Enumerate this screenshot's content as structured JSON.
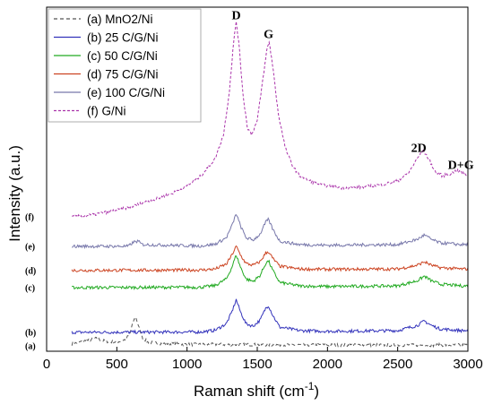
{
  "chart_data": {
    "type": "line",
    "xlabel": "Raman shift (cm",
    "xlabel_sup": "-1",
    "xlabel_close": ")",
    "ylabel": "Intensity (a.u.)",
    "xlim": [
      0,
      3000
    ],
    "x_ticks": [
      0,
      500,
      1000,
      1500,
      2000,
      2500,
      3000
    ],
    "ylim": [
      0,
      100
    ],
    "grid": false,
    "legend_position": "top-left",
    "peak_annotations": [
      {
        "label": "D",
        "x": 1350,
        "y": 96.5
      },
      {
        "label": "G",
        "x": 1580,
        "y": 91
      },
      {
        "label": "2D",
        "x": 2650,
        "y": 58
      },
      {
        "label": "D+G",
        "x": 2950,
        "y": 53
      }
    ],
    "series": [
      {
        "name": "(a) MnO2/Ni",
        "curve_label": "(a)",
        "color": "#555555",
        "dash": "4,3",
        "offset": 1.5,
        "points": [
          [
            180,
            0.6
          ],
          [
            250,
            1.3
          ],
          [
            300,
            1.7
          ],
          [
            350,
            2.2
          ],
          [
            400,
            1.6
          ],
          [
            450,
            1.2
          ],
          [
            500,
            1.2
          ],
          [
            550,
            1.7
          ],
          [
            590,
            3.2
          ],
          [
            620,
            7.5
          ],
          [
            635,
            8.4
          ],
          [
            650,
            6.5
          ],
          [
            680,
            2.6
          ],
          [
            720,
            1.2
          ],
          [
            800,
            0.8
          ],
          [
            1000,
            0.5
          ],
          [
            1500,
            0.4
          ],
          [
            2000,
            0.3
          ],
          [
            2500,
            0.3
          ],
          [
            3000,
            0.3
          ]
        ]
      },
      {
        "name": "(b) 25 C/G/Ni",
        "curve_label": "(b)",
        "color": "#3333bb",
        "dash": "",
        "offset": 5.5,
        "points": [
          [
            180,
            0
          ],
          [
            1100,
            0.1
          ],
          [
            1200,
            0.6
          ],
          [
            1280,
            2.5
          ],
          [
            1320,
            6
          ],
          [
            1350,
            9.5
          ],
          [
            1380,
            6
          ],
          [
            1420,
            2.5
          ],
          [
            1470,
            1.8
          ],
          [
            1520,
            3.5
          ],
          [
            1560,
            7
          ],
          [
            1580,
            7.8
          ],
          [
            1610,
            5
          ],
          [
            1660,
            1.5
          ],
          [
            1800,
            0.5
          ],
          [
            2000,
            0.3
          ],
          [
            2500,
            0.5
          ],
          [
            2640,
            2
          ],
          [
            2690,
            3.3
          ],
          [
            2740,
            2
          ],
          [
            2800,
            1
          ],
          [
            2950,
            0.5
          ],
          [
            3000,
            0.5
          ]
        ]
      },
      {
        "name": "(c) 50 C/G/Ni",
        "curve_label": "(c)",
        "color": "#22aa22",
        "dash": "",
        "offset": 18.5,
        "points": [
          [
            180,
            0
          ],
          [
            1100,
            0.1
          ],
          [
            1200,
            0.6
          ],
          [
            1280,
            2.5
          ],
          [
            1320,
            6
          ],
          [
            1350,
            9.5
          ],
          [
            1380,
            6
          ],
          [
            1420,
            2.5
          ],
          [
            1470,
            1.8
          ],
          [
            1520,
            3.5
          ],
          [
            1560,
            7
          ],
          [
            1580,
            7.8
          ],
          [
            1610,
            5
          ],
          [
            1660,
            1.5
          ],
          [
            1800,
            0.5
          ],
          [
            2000,
            0.3
          ],
          [
            2500,
            0.5
          ],
          [
            2640,
            2
          ],
          [
            2690,
            3.3
          ],
          [
            2740,
            2
          ],
          [
            2800,
            1
          ],
          [
            2950,
            0.5
          ],
          [
            3000,
            0.5
          ]
        ]
      },
      {
        "name": "(d) 75 C/G/Ni",
        "curve_label": "(d)",
        "color": "#cc4422",
        "dash": "",
        "offset": 23.5,
        "points": [
          [
            180,
            0
          ],
          [
            1100,
            0.1
          ],
          [
            1200,
            0.4
          ],
          [
            1280,
            1.8
          ],
          [
            1320,
            4.5
          ],
          [
            1350,
            7
          ],
          [
            1380,
            4.5
          ],
          [
            1420,
            2
          ],
          [
            1470,
            1.5
          ],
          [
            1520,
            2.5
          ],
          [
            1560,
            5
          ],
          [
            1580,
            5.5
          ],
          [
            1610,
            3.5
          ],
          [
            1660,
            1.2
          ],
          [
            1800,
            0.4
          ],
          [
            2000,
            0.3
          ],
          [
            2500,
            0.4
          ],
          [
            2640,
            1.5
          ],
          [
            2690,
            2.5
          ],
          [
            2740,
            1.5
          ],
          [
            2800,
            0.8
          ],
          [
            2950,
            0.4
          ],
          [
            3000,
            0.4
          ]
        ]
      },
      {
        "name": "(e) 100 C/G/Ni",
        "curve_label": "(e)",
        "color": "#7777aa",
        "dash": "",
        "offset": 30.5,
        "points": [
          [
            180,
            0
          ],
          [
            580,
            0
          ],
          [
            620,
            1.2
          ],
          [
            650,
            1.5
          ],
          [
            680,
            0.5
          ],
          [
            1100,
            0.1
          ],
          [
            1200,
            0.6
          ],
          [
            1280,
            2.5
          ],
          [
            1320,
            6
          ],
          [
            1350,
            9.5
          ],
          [
            1380,
            6
          ],
          [
            1420,
            2.5
          ],
          [
            1470,
            1.8
          ],
          [
            1520,
            3.5
          ],
          [
            1560,
            7
          ],
          [
            1580,
            7.8
          ],
          [
            1610,
            5
          ],
          [
            1660,
            1.5
          ],
          [
            1800,
            0.5
          ],
          [
            2000,
            0.3
          ],
          [
            2500,
            0.5
          ],
          [
            2640,
            2
          ],
          [
            2690,
            3.3
          ],
          [
            2740,
            2
          ],
          [
            2800,
            1
          ],
          [
            2950,
            0.5
          ],
          [
            3000,
            0.5
          ]
        ]
      },
      {
        "name": "(f) G/Ni",
        "curve_label": "(f)",
        "color": "#aa33aa",
        "dash": "3,2",
        "offset": 39,
        "points": [
          [
            180,
            0
          ],
          [
            300,
            0.5
          ],
          [
            400,
            1.2
          ],
          [
            500,
            2
          ],
          [
            600,
            3
          ],
          [
            700,
            4.3
          ],
          [
            800,
            5.5
          ],
          [
            900,
            7
          ],
          [
            1000,
            9
          ],
          [
            1100,
            12
          ],
          [
            1200,
            17
          ],
          [
            1260,
            24
          ],
          [
            1300,
            36
          ],
          [
            1330,
            50
          ],
          [
            1350,
            57
          ],
          [
            1370,
            50
          ],
          [
            1400,
            35
          ],
          [
            1430,
            26
          ],
          [
            1460,
            24
          ],
          [
            1500,
            28
          ],
          [
            1540,
            40
          ],
          [
            1570,
            49
          ],
          [
            1585,
            51
          ],
          [
            1610,
            44
          ],
          [
            1650,
            30
          ],
          [
            1700,
            20
          ],
          [
            1750,
            15
          ],
          [
            1800,
            12
          ],
          [
            1900,
            10
          ],
          [
            2000,
            9
          ],
          [
            2100,
            8.5
          ],
          [
            2200,
            8.5
          ],
          [
            2300,
            9
          ],
          [
            2400,
            9.5
          ],
          [
            2500,
            10.5
          ],
          [
            2580,
            13
          ],
          [
            2640,
            17
          ],
          [
            2680,
            19.5
          ],
          [
            2720,
            17
          ],
          [
            2770,
            13
          ],
          [
            2820,
            12
          ],
          [
            2870,
            12.5
          ],
          [
            2920,
            13.5
          ],
          [
            2960,
            13
          ],
          [
            3000,
            12
          ]
        ]
      }
    ]
  }
}
